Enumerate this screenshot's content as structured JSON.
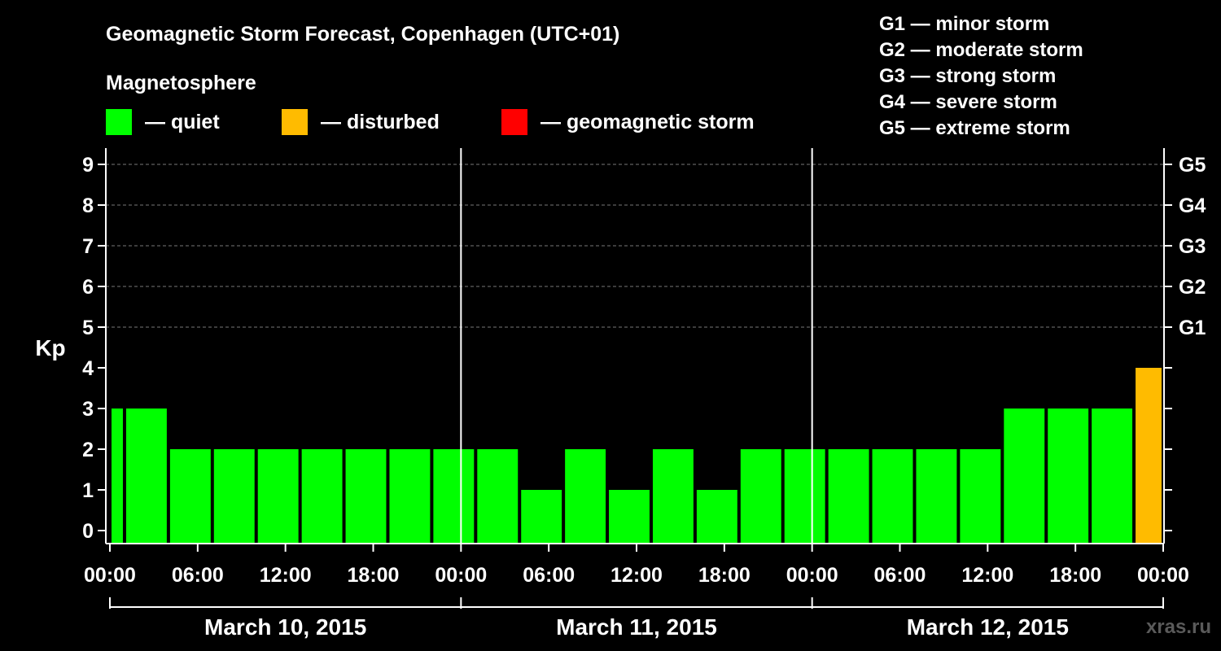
{
  "chart_data": {
    "type": "bar",
    "title": "Geomagnetic Storm Forecast, Copenhagen (UTC+01)",
    "legend_title": "Magnetosphere",
    "legend": [
      {
        "label": "— quiet",
        "color": "#00ff00"
      },
      {
        "label": "— disturbed",
        "color": "#ffbb00"
      },
      {
        "label": "— geomagnetic storm",
        "color": "#ff0000"
      }
    ],
    "g_scale_legend": [
      "G1 — minor storm",
      "G2 — moderate storm",
      "G3 — strong storm",
      "G4 — severe storm",
      "G5 — extreme storm"
    ],
    "ylabel": "Kp",
    "ylim": [
      0,
      9
    ],
    "yticks": [
      "0",
      "1",
      "2",
      "3",
      "4",
      "5",
      "6",
      "7",
      "8",
      "9"
    ],
    "right_ticks": [
      {
        "value": 5,
        "label": "G1"
      },
      {
        "value": 6,
        "label": "G2"
      },
      {
        "value": 7,
        "label": "G3"
      },
      {
        "value": 8,
        "label": "G4"
      },
      {
        "value": 9,
        "label": "G5"
      }
    ],
    "x_range_hours": [
      0,
      72
    ],
    "xtick_labels": [
      "00:00",
      "06:00",
      "12:00",
      "18:00",
      "00:00",
      "06:00",
      "12:00",
      "18:00",
      "00:00",
      "06:00",
      "12:00",
      "18:00",
      "00:00"
    ],
    "days": [
      "March 10, 2015",
      "March 11, 2015",
      "March 12, 2015"
    ],
    "colors": {
      "quiet": "#00ff00",
      "disturbed": "#ffbb00",
      "storm": "#ff0000"
    },
    "bars": [
      {
        "start": 0,
        "end": 1,
        "kp": 3
      },
      {
        "start": 1,
        "end": 4,
        "kp": 3
      },
      {
        "start": 4,
        "end": 7,
        "kp": 2
      },
      {
        "start": 7,
        "end": 10,
        "kp": 2
      },
      {
        "start": 10,
        "end": 13,
        "kp": 2
      },
      {
        "start": 13,
        "end": 16,
        "kp": 2
      },
      {
        "start": 16,
        "end": 19,
        "kp": 2
      },
      {
        "start": 19,
        "end": 22,
        "kp": 2
      },
      {
        "start": 22,
        "end": 25,
        "kp": 2
      },
      {
        "start": 25,
        "end": 28,
        "kp": 2
      },
      {
        "start": 28,
        "end": 31,
        "kp": 1
      },
      {
        "start": 31,
        "end": 34,
        "kp": 2
      },
      {
        "start": 34,
        "end": 37,
        "kp": 1
      },
      {
        "start": 37,
        "end": 40,
        "kp": 2
      },
      {
        "start": 40,
        "end": 43,
        "kp": 1
      },
      {
        "start": 43,
        "end": 46,
        "kp": 2
      },
      {
        "start": 46,
        "end": 49,
        "kp": 2
      },
      {
        "start": 49,
        "end": 52,
        "kp": 2
      },
      {
        "start": 52,
        "end": 55,
        "kp": 2
      },
      {
        "start": 55,
        "end": 58,
        "kp": 2
      },
      {
        "start": 58,
        "end": 61,
        "kp": 2
      },
      {
        "start": 61,
        "end": 64,
        "kp": 3
      },
      {
        "start": 64,
        "end": 67,
        "kp": 3
      },
      {
        "start": 67,
        "end": 70,
        "kp": 3
      },
      {
        "start": 70,
        "end": 72,
        "kp": 4
      }
    ],
    "watermark": "xras.ru"
  }
}
